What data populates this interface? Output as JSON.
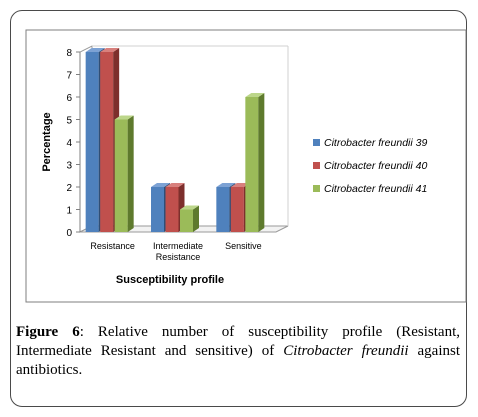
{
  "chart_data": {
    "type": "bar",
    "title": "",
    "categories": [
      "Resistance",
      "Intermediate Resistance",
      "Sensitive"
    ],
    "category_lines": [
      [
        "Resistance"
      ],
      [
        "Intermediate",
        "Resistance"
      ],
      [
        "Sensitive"
      ]
    ],
    "series": [
      {
        "name": "Citrobacter freundii 39",
        "values": [
          8,
          2,
          2
        ],
        "color": "#4f81bd",
        "side": "#2f4f77",
        "top": "#7da2d4"
      },
      {
        "name": "Citrobacter freundii 40",
        "values": [
          8,
          2,
          2
        ],
        "color": "#c0504d",
        "side": "#7d2f2c",
        "top": "#d8807d"
      },
      {
        "name": "Citrobacter freundii 41",
        "values": [
          5,
          1,
          6
        ],
        "color": "#9bbb59",
        "side": "#5e7a2d",
        "top": "#bcd68a"
      }
    ],
    "xlabel": "Susceptibility profile",
    "ylabel": "Percentage",
    "ylim": [
      0,
      8
    ],
    "yticks": [
      "0",
      "1",
      "2",
      "3",
      "4",
      "5",
      "6",
      "7",
      "8"
    ],
    "grid": false,
    "legend_position": "right"
  },
  "caption": {
    "label": "Figure 6",
    "text_before": ": Relative number of susceptibility profile (Resistant, Intermediate Resistant and sensitive) of ",
    "species": "Citrobacter freundii",
    "text_after": " against antibiotics."
  }
}
